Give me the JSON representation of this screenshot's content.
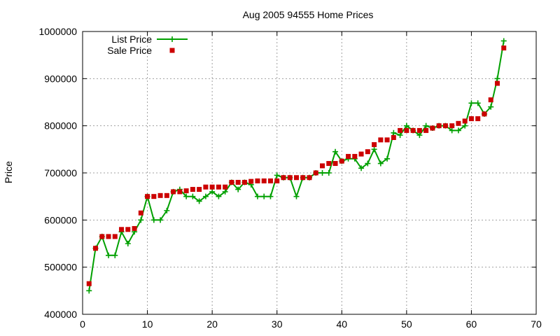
{
  "chart_data": {
    "type": "line",
    "title": "Aug 2005 94555 Home Prices",
    "ylabel": "Price",
    "xlabel": "",
    "xlim": [
      0,
      70
    ],
    "ylim": [
      400000,
      1000000
    ],
    "xticks": [
      "0",
      "10",
      "20",
      "30",
      "40",
      "50",
      "60",
      "70"
    ],
    "yticks": [
      "400000",
      "500000",
      "600000",
      "700000",
      "800000",
      "900000",
      "1000000"
    ],
    "grid": true,
    "legend_position": "top-left",
    "series": [
      {
        "name": "List Price",
        "style": "linespoints",
        "marker": "plus",
        "color": "#00a000",
        "x": [
          1,
          2,
          3,
          4,
          5,
          6,
          7,
          8,
          9,
          10,
          11,
          12,
          13,
          14,
          15,
          16,
          17,
          18,
          19,
          20,
          21,
          22,
          23,
          24,
          25,
          26,
          27,
          28,
          29,
          30,
          31,
          32,
          33,
          34,
          35,
          36,
          37,
          38,
          39,
          40,
          41,
          42,
          43,
          44,
          45,
          46,
          47,
          48,
          49,
          50,
          51,
          52,
          53,
          54,
          55,
          56,
          57,
          58,
          59,
          60,
          61,
          62,
          63,
          64,
          65
        ],
        "values": [
          450000,
          540000,
          565000,
          525000,
          525000,
          575000,
          550000,
          575000,
          600000,
          650000,
          600000,
          600000,
          620000,
          660000,
          665000,
          650000,
          650000,
          640000,
          650000,
          660000,
          650000,
          660000,
          680000,
          665000,
          680000,
          675000,
          650000,
          650000,
          650000,
          695000,
          690000,
          690000,
          650000,
          690000,
          690000,
          700000,
          700000,
          700000,
          745000,
          725000,
          730000,
          730000,
          710000,
          720000,
          750000,
          720000,
          730000,
          785000,
          780000,
          800000,
          790000,
          780000,
          800000,
          795000,
          800000,
          800000,
          790000,
          790000,
          800000,
          848000,
          848000,
          825000,
          840000,
          900000,
          980000
        ]
      },
      {
        "name": "Sale Price",
        "style": "points",
        "marker": "square",
        "color": "#cc0000",
        "x": [
          1,
          2,
          3,
          4,
          5,
          6,
          7,
          8,
          9,
          10,
          11,
          12,
          13,
          14,
          15,
          16,
          17,
          18,
          19,
          20,
          21,
          22,
          23,
          24,
          25,
          26,
          27,
          28,
          29,
          30,
          31,
          32,
          33,
          34,
          35,
          36,
          37,
          38,
          39,
          40,
          41,
          42,
          43,
          44,
          45,
          46,
          47,
          48,
          49,
          50,
          51,
          52,
          53,
          54,
          55,
          56,
          57,
          58,
          59,
          60,
          61,
          62,
          63,
          64,
          65
        ],
        "values": [
          465000,
          540000,
          565000,
          565000,
          565000,
          580000,
          580000,
          582000,
          615000,
          650000,
          650000,
          652000,
          652000,
          660000,
          660000,
          662000,
          665000,
          665000,
          670000,
          670000,
          670000,
          670000,
          680000,
          680000,
          680000,
          682000,
          683000,
          683000,
          683000,
          683000,
          690000,
          690000,
          690000,
          690000,
          690000,
          700000,
          715000,
          720000,
          720000,
          725000,
          735000,
          735000,
          740000,
          745000,
          760000,
          770000,
          770000,
          775000,
          790000,
          790000,
          790000,
          790000,
          790000,
          795000,
          800000,
          800000,
          800000,
          805000,
          810000,
          815000,
          815000,
          825000,
          855000,
          890000,
          965000
        ]
      }
    ]
  }
}
